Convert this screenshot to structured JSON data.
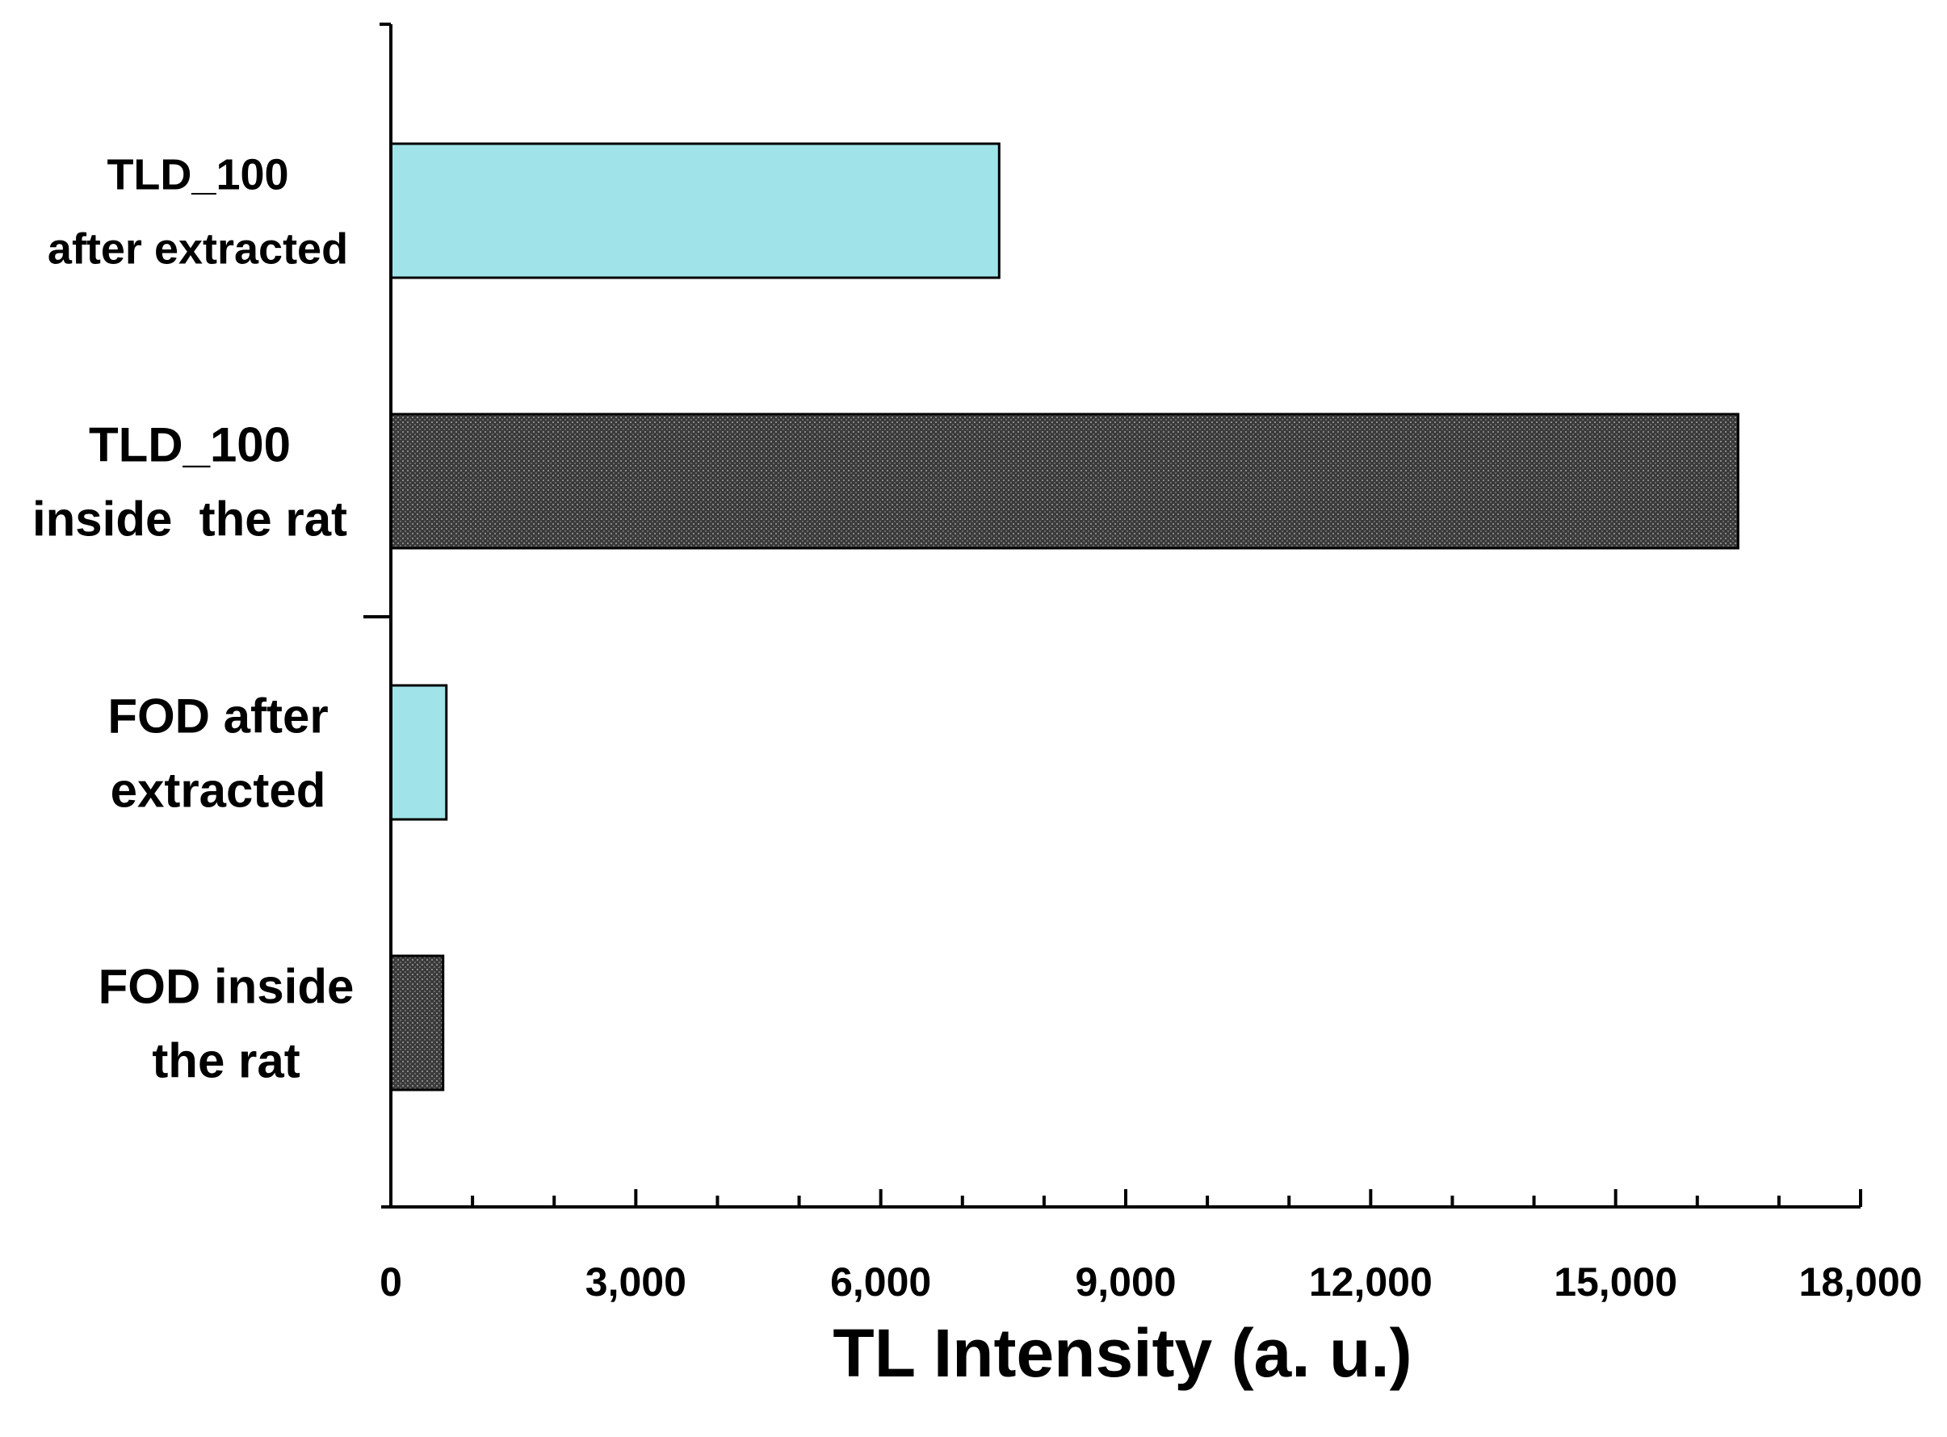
{
  "chart_data": {
    "type": "bar",
    "orientation": "horizontal",
    "title": "",
    "xlabel": "TL Intensity (a. u.)",
    "ylabel": "",
    "xlim": [
      0,
      18000
    ],
    "x_ticks": [
      0,
      3000,
      6000,
      9000,
      12000,
      15000,
      18000
    ],
    "x_tick_labels": [
      "0",
      "3,000",
      "6,000",
      "9,000",
      "12,000",
      "15,000",
      "18,000"
    ],
    "grid": false,
    "legend": "none",
    "categories": [
      {
        "lines": [
          "TLD_100",
          "after extracted"
        ],
        "value": 7450,
        "color": "#a0e4ea",
        "pattern": "none"
      },
      {
        "lines": [
          "TLD_100",
          "inside  the rat"
        ],
        "value": 16500,
        "color": "#3a3a3a",
        "pattern": "dots"
      },
      {
        "lines": [
          "FOD after",
          "extracted"
        ],
        "value": 680,
        "color": "#a0e4ea",
        "pattern": "none"
      },
      {
        "lines": [
          "FOD inside",
          "the rat"
        ],
        "value": 640,
        "color": "#222222",
        "pattern": "dots"
      }
    ]
  }
}
